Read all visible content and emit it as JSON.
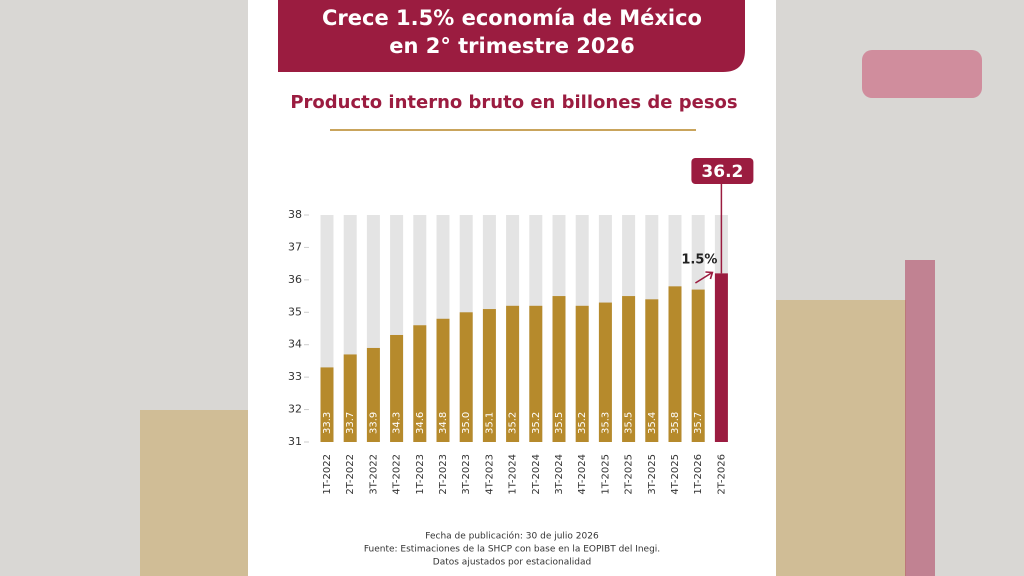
{
  "chart_data": {
    "type": "bar",
    "title": [
      "Crece 1.5% economía de México",
      "en 2° trimestre 2026"
    ],
    "subtitle": "Producto interno bruto en billones de pesos",
    "categories": [
      "1T-2022",
      "2T-2022",
      "3T-2022",
      "4T-2022",
      "1T-2023",
      "2T-2023",
      "3T-2023",
      "4T-2023",
      "1T-2024",
      "2T-2024",
      "3T-2024",
      "4T-2024",
      "1T-2025",
      "2T-2025",
      "3T-2025",
      "4T-2025",
      "1T-2026",
      "2T-2026"
    ],
    "values": [
      33.3,
      33.7,
      33.9,
      34.3,
      34.6,
      34.8,
      35.0,
      35.1,
      35.2,
      35.2,
      35.5,
      35.2,
      35.3,
      35.5,
      35.4,
      35.8,
      35.7,
      36.2
    ],
    "value_labels": [
      "33.3",
      "33.7",
      "33.9",
      "34.3",
      "34.6",
      "34.8",
      "35.0",
      "35.1",
      "35.2",
      "35.2",
      "35.5",
      "35.2",
      "35.3",
      "35.5",
      "35.4",
      "35.8",
      "35.7",
      "36.2"
    ],
    "colors": [
      "#b68a2c",
      "#b68a2c",
      "#b68a2c",
      "#b68a2c",
      "#b68a2c",
      "#b68a2c",
      "#b68a2c",
      "#b68a2c",
      "#b68a2c",
      "#b68a2c",
      "#b68a2c",
      "#b68a2c",
      "#b68a2c",
      "#b68a2c",
      "#b68a2c",
      "#b68a2c",
      "#b68a2c",
      "#9b1c40"
    ],
    "ylim": [
      31,
      38
    ],
    "yticks": [
      31,
      32,
      33,
      34,
      35,
      36,
      37,
      38
    ],
    "annotations": [
      "1.5%"
    ],
    "footnotes": [
      "Fecha de publicación: 30 de julio 2026",
      "Fuente: Estimaciones de la SHCP con base en la EOPIBT del Inegi.",
      "Datos ajustados por estacionalidad"
    ]
  }
}
